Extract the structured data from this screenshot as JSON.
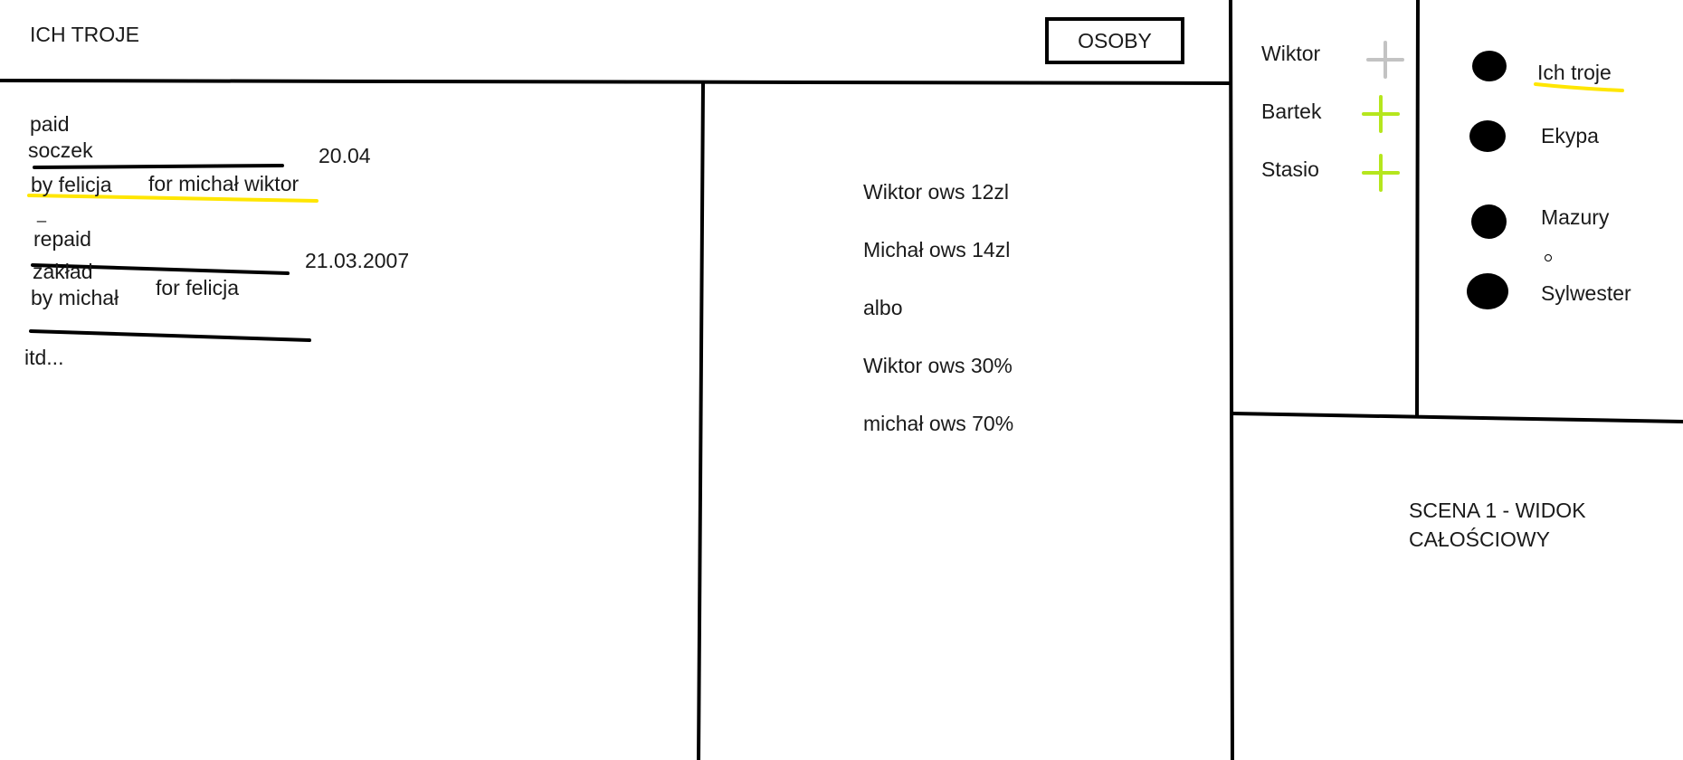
{
  "app": {
    "title": "ICH TROJE",
    "osoby_button": "OSOBY"
  },
  "transactions": [
    {
      "status": "paid",
      "name": "soczek",
      "date": "20.04",
      "by": "by felicja",
      "for": "for michał wiktor"
    },
    {
      "mark": "_",
      "status": "repaid",
      "name": "zakład",
      "date": "21.03.2007",
      "by": "by michał",
      "for": "for felicja"
    }
  ],
  "more_text": "itd...",
  "balances": [
    "Wiktor ows 12zl",
    "Michał ows 14zl",
    "albo",
    "Wiktor ows 30%",
    "michał ows 70%"
  ],
  "people": [
    {
      "name": "Wiktor",
      "add_color": "#c3c3c3"
    },
    {
      "name": "Bartek",
      "add_color": "#b5e61d"
    },
    {
      "name": "Stasio",
      "add_color": "#b5e61d"
    }
  ],
  "groups": [
    {
      "name": "Ich troje",
      "highlight_color": "#ffe600"
    },
    {
      "name": "Ekypa"
    },
    {
      "name": "Mazury"
    },
    {
      "name": "Sylwester"
    }
  ],
  "scene_label": {
    "line1": "SCENA 1 - WIDOK",
    "line2": "CAŁOŚCIOWY"
  },
  "colors": {
    "highlight": "#ffe600",
    "ink": "#000000",
    "add_green": "#b5e61d",
    "add_grey": "#c3c3c3"
  }
}
